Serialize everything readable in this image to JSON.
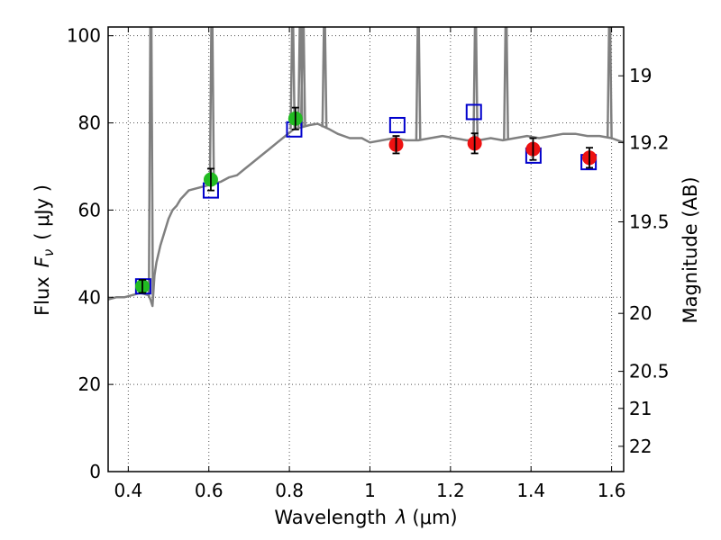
{
  "chart_data": {
    "type": "scatter",
    "xlabel_prefix": "Wavelength",
    "xlabel_symbol": "λ",
    "xlabel_unit": "(μm)",
    "ylabel_prefix": "Flux",
    "ylabel_symbol": "F",
    "ylabel_subscript": "ν",
    "ylabel_unit": "( μJy )",
    "y2label": "Magnitude (AB)",
    "xlim": [
      0.35,
      1.63
    ],
    "ylim": [
      0,
      102
    ],
    "grid": true,
    "x_ticks": [
      {
        "value": 0.4,
        "label": "0.4"
      },
      {
        "value": 0.6,
        "label": "0.6"
      },
      {
        "value": 0.8,
        "label": "0.8"
      },
      {
        "value": 1.0,
        "label": "1"
      },
      {
        "value": 1.2,
        "label": "1.2"
      },
      {
        "value": 1.4,
        "label": "1.4"
      },
      {
        "value": 1.6,
        "label": "1.6"
      }
    ],
    "y_ticks": [
      {
        "value": 0,
        "label": "0"
      },
      {
        "value": 20,
        "label": "20"
      },
      {
        "value": 40,
        "label": "40"
      },
      {
        "value": 60,
        "label": "60"
      },
      {
        "value": 80,
        "label": "80"
      },
      {
        "value": 100,
        "label": "100"
      }
    ],
    "y2_ticks": [
      {
        "flux": 90.8,
        "label": "19"
      },
      {
        "flux": 75.5,
        "label": "19.2"
      },
      {
        "flux": 57.3,
        "label": "19.5"
      },
      {
        "flux": 36.3,
        "label": "20"
      },
      {
        "flux": 23.0,
        "label": "20.5"
      },
      {
        "flux": 14.5,
        "label": "21"
      },
      {
        "flux": 5.8,
        "label": "22"
      }
    ],
    "colors": {
      "model": "#808080",
      "optical": "#22bb22",
      "nir": "#ee1111",
      "model_box": "#0000cc",
      "grid": "#555555"
    },
    "model_spectrum": [
      [
        0.35,
        39.5
      ],
      [
        0.37,
        40.0
      ],
      [
        0.39,
        40.0
      ],
      [
        0.41,
        40.5
      ],
      [
        0.43,
        41.0
      ],
      [
        0.45,
        40.5
      ],
      [
        0.455,
        39.5
      ],
      [
        0.46,
        38.0
      ],
      [
        0.465,
        45.0
      ],
      [
        0.47,
        48.0
      ],
      [
        0.48,
        52.0
      ],
      [
        0.49,
        55.0
      ],
      [
        0.5,
        58.0
      ],
      [
        0.51,
        60.0
      ],
      [
        0.52,
        61.0
      ],
      [
        0.53,
        62.5
      ],
      [
        0.54,
        63.5
      ],
      [
        0.55,
        64.5
      ],
      [
        0.57,
        65.0
      ],
      [
        0.59,
        65.5
      ],
      [
        0.61,
        66.0
      ],
      [
        0.63,
        66.5
      ],
      [
        0.65,
        67.5
      ],
      [
        0.67,
        68.0
      ],
      [
        0.69,
        69.5
      ],
      [
        0.71,
        71.0
      ],
      [
        0.73,
        72.5
      ],
      [
        0.75,
        74.0
      ],
      [
        0.77,
        75.5
      ],
      [
        0.79,
        77.0
      ],
      [
        0.81,
        78.5
      ],
      [
        0.83,
        79.0
      ],
      [
        0.85,
        79.5
      ],
      [
        0.87,
        79.8
      ],
      [
        0.9,
        78.5
      ],
      [
        0.92,
        77.5
      ],
      [
        0.95,
        76.5
      ],
      [
        0.98,
        76.5
      ],
      [
        1.0,
        75.5
      ],
      [
        1.03,
        76.0
      ],
      [
        1.06,
        76.5
      ],
      [
        1.09,
        76.0
      ],
      [
        1.12,
        76.0
      ],
      [
        1.15,
        76.5
      ],
      [
        1.18,
        77.0
      ],
      [
        1.21,
        76.5
      ],
      [
        1.24,
        76.0
      ],
      [
        1.27,
        76.0
      ],
      [
        1.3,
        76.5
      ],
      [
        1.33,
        76.0
      ],
      [
        1.36,
        76.5
      ],
      [
        1.39,
        77.0
      ],
      [
        1.42,
        76.5
      ],
      [
        1.45,
        77.0
      ],
      [
        1.48,
        77.5
      ],
      [
        1.51,
        77.5
      ],
      [
        1.54,
        77.0
      ],
      [
        1.57,
        77.0
      ],
      [
        1.6,
        76.5
      ],
      [
        1.63,
        75.5
      ]
    ],
    "emission_lines": [
      {
        "x": 0.456,
        "top": 102,
        "base": 40
      },
      {
        "x": 0.6075,
        "top": 102,
        "base": 66
      },
      {
        "x": 0.808,
        "top": 102,
        "base": 78.5
      },
      {
        "x": 0.827,
        "top": 102,
        "base": 79
      },
      {
        "x": 0.834,
        "top": 102,
        "base": 79.3
      },
      {
        "x": 0.887,
        "top": 102,
        "base": 79
      },
      {
        "x": 1.12,
        "top": 102,
        "base": 76
      },
      {
        "x": 1.262,
        "top": 102,
        "base": 76
      },
      {
        "x": 1.338,
        "top": 102,
        "base": 76.2
      },
      {
        "x": 1.595,
        "top": 102,
        "base": 76.5
      }
    ],
    "observed_optical": [
      {
        "x": 0.435,
        "y": 42.5,
        "err": 1.5
      },
      {
        "x": 0.605,
        "y": 67.0,
        "err": 2.5
      },
      {
        "x": 0.815,
        "y": 81.0,
        "err": 2.5
      }
    ],
    "observed_nir": [
      {
        "x": 1.065,
        "y": 75.0,
        "err": 2.0
      },
      {
        "x": 1.26,
        "y": 75.3,
        "err": 2.3
      },
      {
        "x": 1.405,
        "y": 74.0,
        "err": 2.5
      },
      {
        "x": 1.545,
        "y": 72.0,
        "err": 2.3
      }
    ],
    "model_photometry": [
      {
        "x": 0.437,
        "y": 42.5
      },
      {
        "x": 0.605,
        "y": 64.5
      },
      {
        "x": 0.812,
        "y": 78.5
      },
      {
        "x": 1.068,
        "y": 79.5
      },
      {
        "x": 1.258,
        "y": 82.5
      },
      {
        "x": 1.406,
        "y": 72.5
      },
      {
        "x": 1.543,
        "y": 71.0
      }
    ]
  }
}
